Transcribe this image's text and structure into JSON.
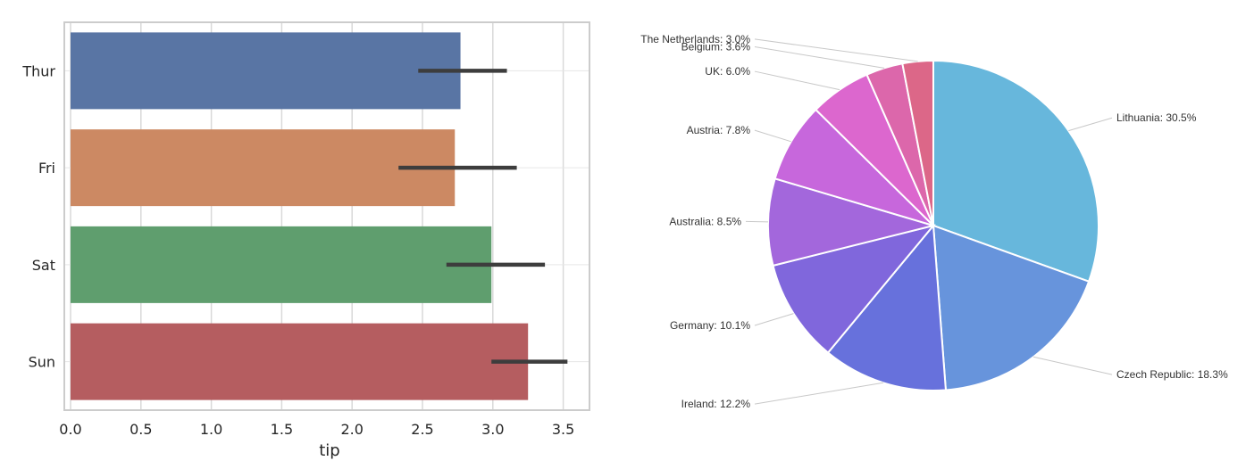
{
  "chart_data": [
    {
      "type": "bar",
      "orientation": "horizontal",
      "categories": [
        "Thur",
        "Fri",
        "Sat",
        "Sun"
      ],
      "values": [
        2.77,
        2.73,
        2.99,
        3.25
      ],
      "error_low": [
        2.47,
        2.33,
        2.67,
        2.99
      ],
      "error_high": [
        3.1,
        3.17,
        3.37,
        3.53
      ],
      "colors": [
        "#5975a4",
        "#cc8963",
        "#5f9e6e",
        "#b55d60"
      ],
      "xlabel": "tip",
      "ylabel": "",
      "xlim": [
        0,
        3.7
      ],
      "xticks": [
        "0.0",
        "0.5",
        "1.0",
        "1.5",
        "2.0",
        "2.5",
        "3.0",
        "3.5"
      ],
      "grid": true
    },
    {
      "type": "pie",
      "slices": [
        {
          "label": "Lithuania: 30.5%",
          "value": 30.5,
          "color": "#67b7dc"
        },
        {
          "label": "Czech Republic: 18.3%",
          "value": 18.3,
          "color": "#6794dc"
        },
        {
          "label": "Ireland: 12.2%",
          "value": 12.2,
          "color": "#6771dc"
        },
        {
          "label": "Germany: 10.1%",
          "value": 10.1,
          "color": "#8067dc"
        },
        {
          "label": "Australia: 8.5%",
          "value": 8.5,
          "color": "#a367dc"
        },
        {
          "label": "Austria: 7.8%",
          "value": 7.8,
          "color": "#c767dc"
        },
        {
          "label": "UK: 6.0%",
          "value": 6.0,
          "color": "#dc67ce"
        },
        {
          "label": "Belgium: 3.6%",
          "value": 3.6,
          "color": "#dc67ab"
        },
        {
          "label": "The Netherlands: 3.0%",
          "value": 3.0,
          "color": "#dc6788"
        }
      ]
    }
  ]
}
